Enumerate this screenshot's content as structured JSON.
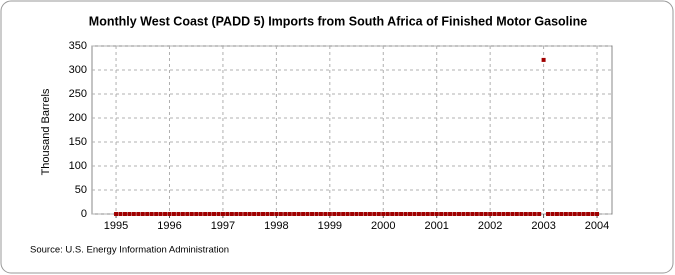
{
  "chart_data": {
    "type": "scatter",
    "title": "Monthly West Coast (PADD 5) Imports from South Africa of Finished Motor Gasoline",
    "y_label": "Thousand Barrels",
    "source": "Source: U.S. Energy Information Administration",
    "color": "#a00000",
    "grid": true,
    "xlim": [
      1994.55,
      2004.28
    ],
    "xticks": [
      1995,
      1996,
      1997,
      1998,
      1999,
      2000,
      2001,
      2002,
      2003,
      2004
    ],
    "ylim": [
      0,
      350
    ],
    "yticks": [
      0,
      50,
      100,
      150,
      200,
      250,
      300,
      350
    ],
    "x": [
      1995,
      1995.083,
      1995.167,
      1995.25,
      1995.333,
      1995.417,
      1995.5,
      1995.583,
      1995.667,
      1995.75,
      1995.833,
      1995.917,
      1996,
      1996.083,
      1996.167,
      1996.25,
      1996.333,
      1996.417,
      1996.5,
      1996.583,
      1996.667,
      1996.75,
      1996.833,
      1996.917,
      1997,
      1997.083,
      1997.167,
      1997.25,
      1997.333,
      1997.417,
      1997.5,
      1997.583,
      1997.667,
      1997.75,
      1997.833,
      1997.917,
      1998,
      1998.083,
      1998.167,
      1998.25,
      1998.333,
      1998.417,
      1998.5,
      1998.583,
      1998.667,
      1998.75,
      1998.833,
      1998.917,
      1999,
      1999.083,
      1999.167,
      1999.25,
      1999.333,
      1999.417,
      1999.5,
      1999.583,
      1999.667,
      1999.75,
      1999.833,
      1999.917,
      2000,
      2000.083,
      2000.167,
      2000.25,
      2000.333,
      2000.417,
      2000.5,
      2000.583,
      2000.667,
      2000.75,
      2000.833,
      2000.917,
      2001,
      2001.083,
      2001.167,
      2001.25,
      2001.333,
      2001.417,
      2001.5,
      2001.583,
      2001.667,
      2001.75,
      2001.833,
      2001.917,
      2002,
      2002.083,
      2002.167,
      2002.25,
      2002.333,
      2002.417,
      2002.5,
      2002.583,
      2002.667,
      2002.75,
      2002.833,
      2002.917,
      2003,
      2003.083,
      2003.167,
      2003.25,
      2003.333,
      2003.417,
      2003.5,
      2003.583,
      2003.667,
      2003.75,
      2003.833,
      2003.917,
      2004
    ],
    "values": [
      0,
      0,
      0,
      0,
      0,
      0,
      0,
      0,
      0,
      0,
      0,
      0,
      0,
      0,
      0,
      0,
      0,
      0,
      0,
      0,
      0,
      0,
      0,
      0,
      0,
      0,
      0,
      0,
      0,
      0,
      0,
      0,
      0,
      0,
      0,
      0,
      0,
      0,
      0,
      0,
      0,
      0,
      0,
      0,
      0,
      0,
      0,
      0,
      0,
      0,
      0,
      0,
      0,
      0,
      0,
      0,
      0,
      0,
      0,
      0,
      0,
      0,
      0,
      0,
      0,
      0,
      0,
      0,
      0,
      0,
      0,
      0,
      0,
      0,
      0,
      0,
      0,
      0,
      0,
      0,
      0,
      0,
      0,
      0,
      0,
      0,
      0,
      0,
      0,
      0,
      0,
      0,
      0,
      0,
      0,
      0,
      321,
      0,
      0,
      0,
      0,
      0,
      0,
      0,
      0,
      0,
      0,
      0,
      0
    ]
  }
}
